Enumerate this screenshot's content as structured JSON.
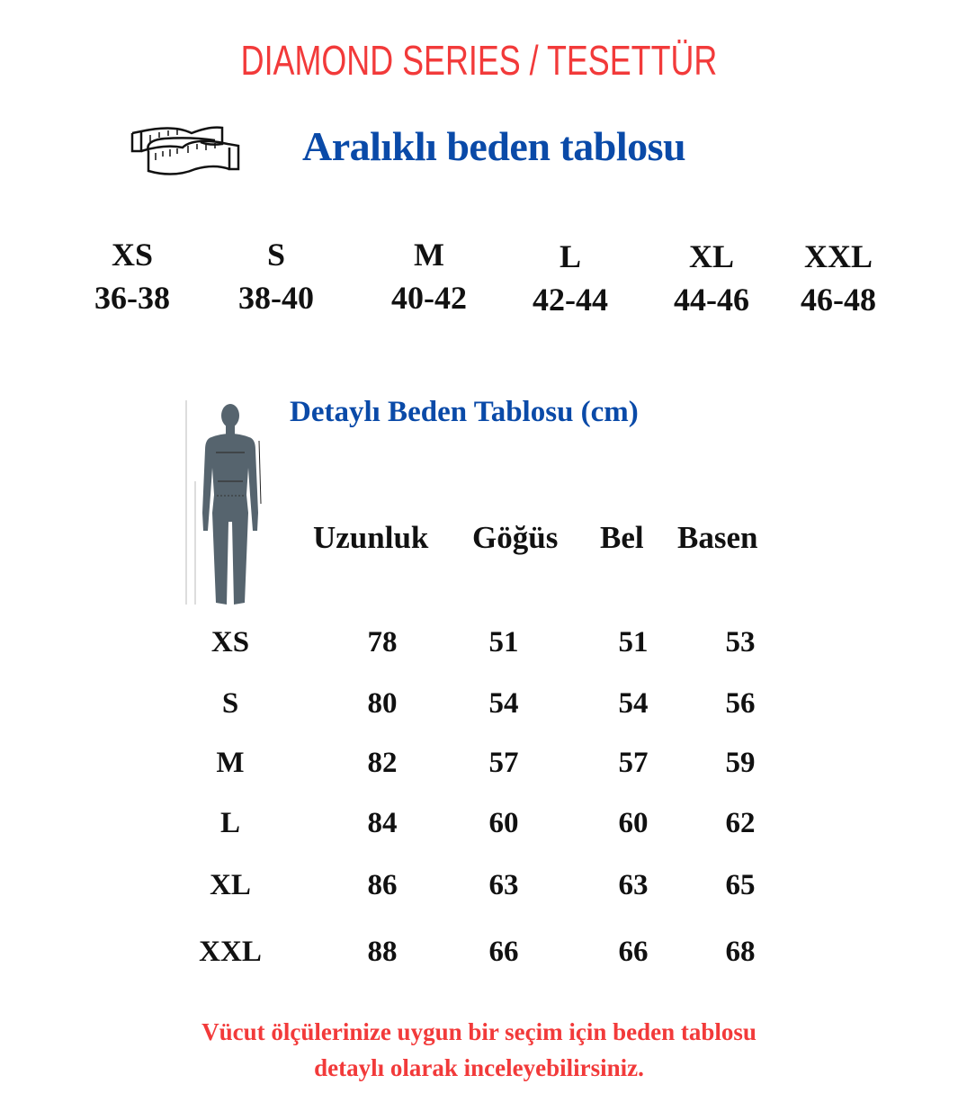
{
  "title": "DIAMOND SERIES / TESETTÜR",
  "subtitle": "Aralıklı beden tablosu",
  "size_ranges": [
    {
      "size": "XS",
      "range": "36-38"
    },
    {
      "size": "S",
      "range": "38-40"
    },
    {
      "size": "M",
      "range": "40-42"
    },
    {
      "size": "L",
      "range": "42-44"
    },
    {
      "size": "XL",
      "range": "44-46"
    },
    {
      "size": "XXL",
      "range": "46-48"
    }
  ],
  "detail_title": "Detaylı Beden Tablosu (cm)",
  "table": {
    "headers": [
      "Uzunluk",
      "Göğüs",
      "Bel",
      "Basen"
    ],
    "rows": [
      {
        "size": "XS",
        "values": [
          "78",
          "51",
          "51",
          "53"
        ]
      },
      {
        "size": "S",
        "values": [
          "80",
          "54",
          "54",
          "56"
        ]
      },
      {
        "size": "M",
        "values": [
          "82",
          "57",
          "57",
          "59"
        ]
      },
      {
        "size": "L",
        "values": [
          "84",
          "60",
          "60",
          "62"
        ]
      },
      {
        "size": "XL",
        "values": [
          "86",
          "63",
          "63",
          "65"
        ]
      },
      {
        "size": "XXL",
        "values": [
          "88",
          "66",
          "66",
          "68"
        ]
      }
    ]
  },
  "footer": [
    "Vücut ölçülerinize uygun bir seçim için beden tablosu",
    "detaylı olarak inceleyebilirsiniz."
  ],
  "icons": [
    "measuring-tape-icon",
    "body-silhouette-icon"
  ],
  "colors": {
    "title": "#f23a3a",
    "heading": "#0a4aa8",
    "text": "#111111",
    "silhouette": "#56646e"
  }
}
